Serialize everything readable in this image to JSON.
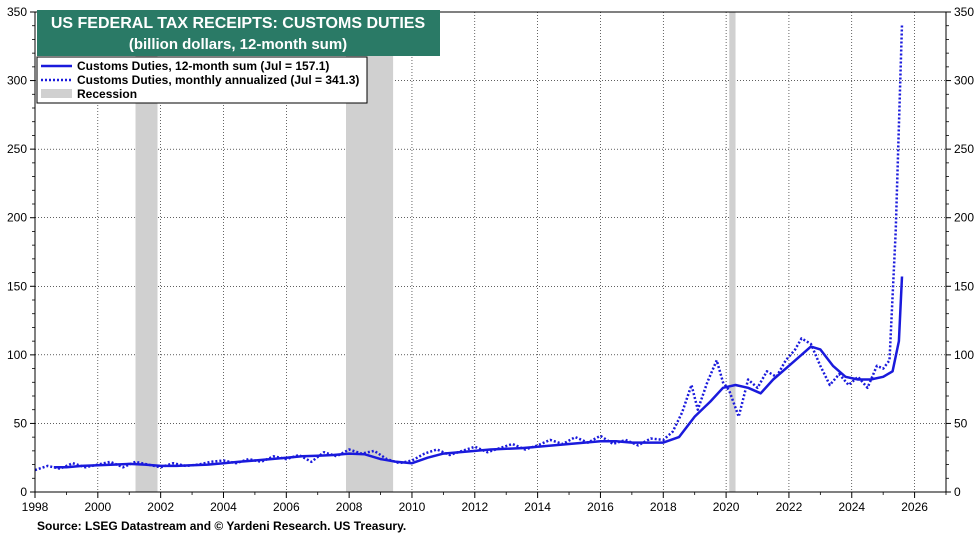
{
  "chart_data": {
    "type": "line",
    "title": "US FEDERAL TAX RECEIPTS: CUSTOMS DUTIES",
    "subtitle": "(billion dollars, 12-month sum)",
    "source": "Source: LSEG Datastream and © Yardeni Research. US Treasury.",
    "xlim": [
      1998,
      2027
    ],
    "ylim": [
      0,
      350
    ],
    "x_ticks": [
      1998,
      2000,
      2002,
      2004,
      2006,
      2008,
      2010,
      2012,
      2014,
      2016,
      2018,
      2020,
      2022,
      2024,
      2026
    ],
    "y_ticks": [
      0,
      50,
      100,
      150,
      200,
      250,
      300,
      350
    ],
    "grid": true,
    "legend_position": "top-left",
    "recessions": [
      {
        "start": 2001.2,
        "end": 2001.9
      },
      {
        "start": 2007.9,
        "end": 2009.4
      },
      {
        "start": 2020.1,
        "end": 2020.3
      }
    ],
    "legend": [
      {
        "label": "Customs Duties, 12-month sum (Jul = 157.1)",
        "style": "solid"
      },
      {
        "label": "Customs Duties, monthly annualized (Jul = 341.3)",
        "style": "dotted"
      },
      {
        "label": "Recession",
        "style": "shade"
      }
    ],
    "series": [
      {
        "style": "solid",
        "x": [
          1998.6,
          1999.0,
          1999.5,
          2000.0,
          2000.5,
          2001.0,
          2001.5,
          2002.0,
          2002.5,
          2003.0,
          2003.5,
          2004.0,
          2004.5,
          2005.0,
          2005.5,
          2006.0,
          2006.5,
          2007.0,
          2007.5,
          2008.0,
          2008.5,
          2009.0,
          2009.5,
          2010.0,
          2010.5,
          2011.0,
          2011.5,
          2012.0,
          2012.5,
          2013.0,
          2013.5,
          2014.0,
          2014.5,
          2015.0,
          2015.5,
          2016.0,
          2016.5,
          2017.0,
          2017.5,
          2018.0,
          2018.5,
          2019.0,
          2019.5,
          2019.9,
          2020.3,
          2020.7,
          2021.1,
          2021.5,
          2021.9,
          2022.3,
          2022.7,
          2023.0,
          2023.4,
          2023.8,
          2024.2,
          2024.6,
          2025.0,
          2025.3,
          2025.5,
          2025.6
        ],
        "y": [
          18,
          18,
          19,
          19.5,
          20,
          20.5,
          20,
          19,
          19,
          19.5,
          20,
          21,
          22,
          23,
          24,
          25,
          26,
          26.5,
          27,
          28,
          27.5,
          24,
          22,
          21,
          25,
          28,
          29,
          30,
          31,
          31.5,
          32,
          33,
          34,
          35,
          36,
          37,
          37,
          36,
          36,
          36,
          40,
          55,
          66,
          76,
          78,
          76,
          72,
          82,
          90,
          98,
          106,
          104,
          92,
          84,
          82,
          82,
          84,
          88,
          110,
          157.1
        ]
      },
      {
        "style": "dotted",
        "x": [
          1998.0,
          1998.4,
          1998.8,
          1999.2,
          1999.6,
          2000.0,
          2000.4,
          2000.8,
          2001.2,
          2001.6,
          2002.0,
          2002.4,
          2002.8,
          2003.2,
          2003.6,
          2004.0,
          2004.4,
          2004.8,
          2005.2,
          2005.6,
          2006.0,
          2006.4,
          2006.8,
          2007.2,
          2007.6,
          2008.0,
          2008.4,
          2008.8,
          2009.2,
          2009.6,
          2010.0,
          2010.4,
          2010.8,
          2011.2,
          2011.6,
          2012.0,
          2012.4,
          2012.8,
          2013.2,
          2013.6,
          2014.0,
          2014.4,
          2014.8,
          2015.2,
          2015.6,
          2016.0,
          2016.4,
          2016.8,
          2017.2,
          2017.6,
          2018.0,
          2018.3,
          2018.6,
          2018.9,
          2019.1,
          2019.4,
          2019.7,
          2019.9,
          2020.1,
          2020.4,
          2020.7,
          2021.0,
          2021.3,
          2021.6,
          2021.9,
          2022.2,
          2022.4,
          2022.7,
          2023.0,
          2023.3,
          2023.6,
          2023.9,
          2024.2,
          2024.5,
          2024.8,
          2025.0,
          2025.2,
          2025.4,
          2025.6
        ],
        "y": [
          16,
          19,
          17,
          21,
          18,
          20,
          22,
          18,
          22,
          20,
          18,
          21,
          19,
          20,
          22,
          23,
          21,
          24,
          22,
          26,
          24,
          27,
          22,
          29,
          26,
          31,
          28,
          30,
          24,
          21,
          23,
          28,
          31,
          27,
          30,
          33,
          29,
          32,
          35,
          31,
          34,
          38,
          35,
          40,
          36,
          41,
          35,
          38,
          34,
          39,
          38,
          44,
          58,
          78,
          60,
          80,
          96,
          80,
          74,
          55,
          82,
          76,
          88,
          84,
          96,
          104,
          112,
          108,
          92,
          78,
          86,
          78,
          84,
          76,
          92,
          90,
          96,
          190,
          341.3
        ]
      }
    ]
  }
}
